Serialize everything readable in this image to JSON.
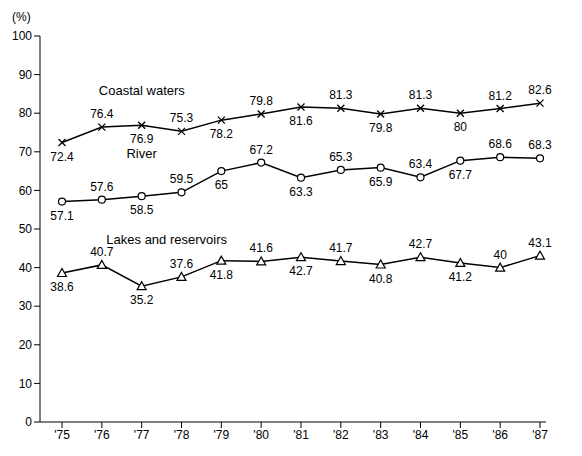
{
  "chart_data": {
    "type": "line",
    "y_label": "(%)",
    "categories": [
      "'75",
      "'76",
      "'77",
      "'78",
      "'79",
      "'80",
      "'81",
      "'82",
      "'83",
      "'84",
      "'85",
      "'86",
      "'87"
    ],
    "series": [
      {
        "name": "Coastal waters",
        "color": "#000000",
        "marker": "x",
        "values": [
          72.4,
          76.4,
          76.9,
          75.3,
          78.2,
          79.8,
          81.6,
          81.3,
          79.8,
          81.3,
          80.0,
          81.2,
          82.6
        ]
      },
      {
        "name": "River",
        "color": "#000000",
        "marker": "circle",
        "values": [
          57.1,
          57.6,
          58.5,
          59.5,
          65.0,
          67.2,
          63.3,
          65.3,
          65.9,
          63.4,
          67.7,
          68.6,
          68.3
        ]
      },
      {
        "name": "Lakes and reservoirs",
        "color": "#000000",
        "marker": "triangle",
        "values": [
          38.6,
          40.7,
          35.2,
          37.6,
          41.8,
          41.6,
          42.7,
          41.7,
          40.8,
          42.7,
          41.2,
          40.0,
          43.1
        ]
      }
    ],
    "ylim": [
      0,
      100
    ],
    "yticks": [
      0,
      10,
      20,
      30,
      40,
      50,
      60,
      70,
      80,
      90,
      100
    ],
    "grid": false,
    "data_labels": true
  }
}
